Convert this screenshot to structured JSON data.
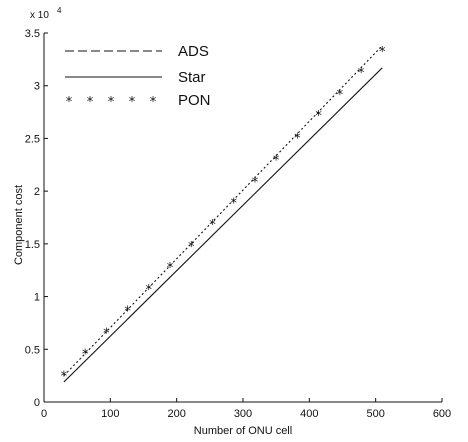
{
  "chart_data": {
    "type": "line",
    "title": "",
    "xlabel": "Number of ONU cell",
    "ylabel": "Component cost",
    "y_multiplier": "x 10",
    "y_exponent": "4",
    "xlim": [
      0,
      600
    ],
    "ylim": [
      0,
      3.5
    ],
    "x_ticks": [
      "0",
      "100",
      "200",
      "300",
      "400",
      "500",
      "600"
    ],
    "y_ticks": [
      "0",
      "0.5",
      "1",
      "1.5",
      "2",
      "2.5",
      "3",
      "3.5"
    ],
    "grid": false,
    "legend_position": "top-left",
    "series": [
      {
        "name": "ADS",
        "style": "dashed",
        "x": [
          30,
          510
        ],
        "y": [
          0.25,
          3.38
        ]
      },
      {
        "name": "Star",
        "style": "solid",
        "x": [
          30,
          510
        ],
        "y": [
          0.19,
          3.17
        ]
      },
      {
        "name": "PON",
        "style": "stars",
        "x": [
          30,
          62,
          94,
          126,
          158,
          190,
          222,
          254,
          286,
          318,
          350,
          382,
          414,
          446,
          478,
          510
        ],
        "y": [
          0.25,
          0.46,
          0.66,
          0.87,
          1.07,
          1.28,
          1.48,
          1.69,
          1.89,
          2.09,
          2.3,
          2.51,
          2.72,
          2.92,
          3.13,
          3.33
        ]
      }
    ]
  }
}
